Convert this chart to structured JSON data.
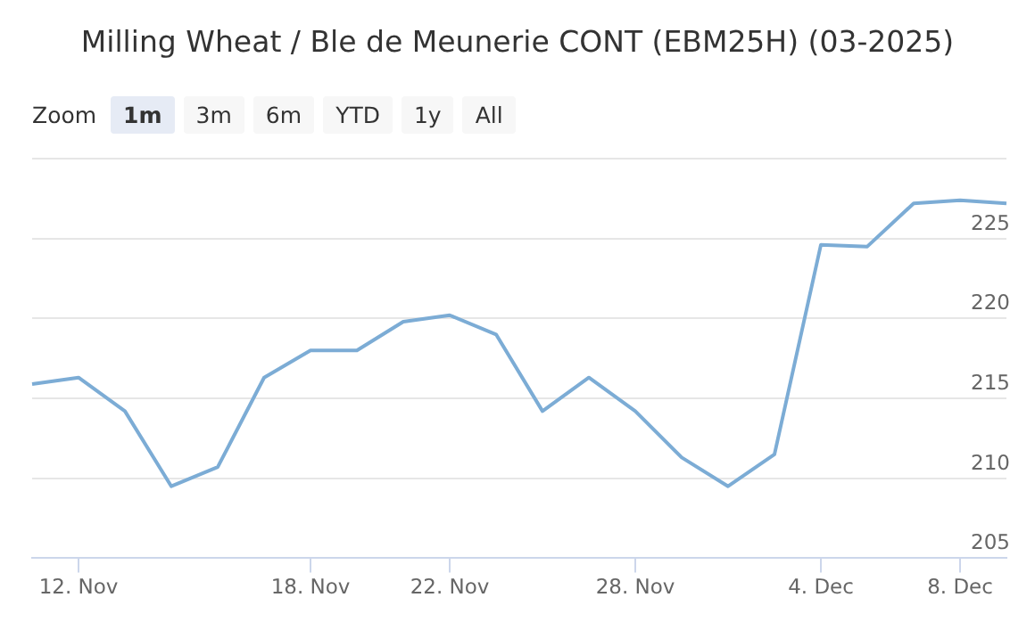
{
  "chart_data": {
    "type": "line",
    "title": "Milling Wheat / Ble de Meunerie CONT (EBM25H) (03-2025)",
    "annotations": [
      "Zoom",
      "1m",
      "3m",
      "6m",
      "YTD",
      "1y",
      "All"
    ],
    "categories": [
      null,
      "12. Nov",
      null,
      null,
      null,
      null,
      "18. Nov",
      null,
      null,
      "22. Nov",
      null,
      null,
      null,
      "28. Nov",
      null,
      null,
      null,
      "4. Dec",
      null,
      null,
      "8. Dec",
      null
    ],
    "series": [
      {
        "color": "#7cacd5",
        "values": [
          215.9,
          216.3,
          214.2,
          209.5,
          210.7,
          216.3,
          218.0,
          218.0,
          219.8,
          220.2,
          219.0,
          214.2,
          216.3,
          214.2,
          211.3,
          209.5,
          211.5,
          224.6,
          224.5,
          227.2,
          227.4,
          227.2
        ]
      }
    ],
    "ylim": [
      205,
      230
    ],
    "yticks": [
      205,
      210,
      215,
      220,
      225,
      {
        "value": 230,
        "label": null
      }
    ],
    "grid": "y",
    "legend": false,
    "marker": "none",
    "line_style": "solid"
  }
}
